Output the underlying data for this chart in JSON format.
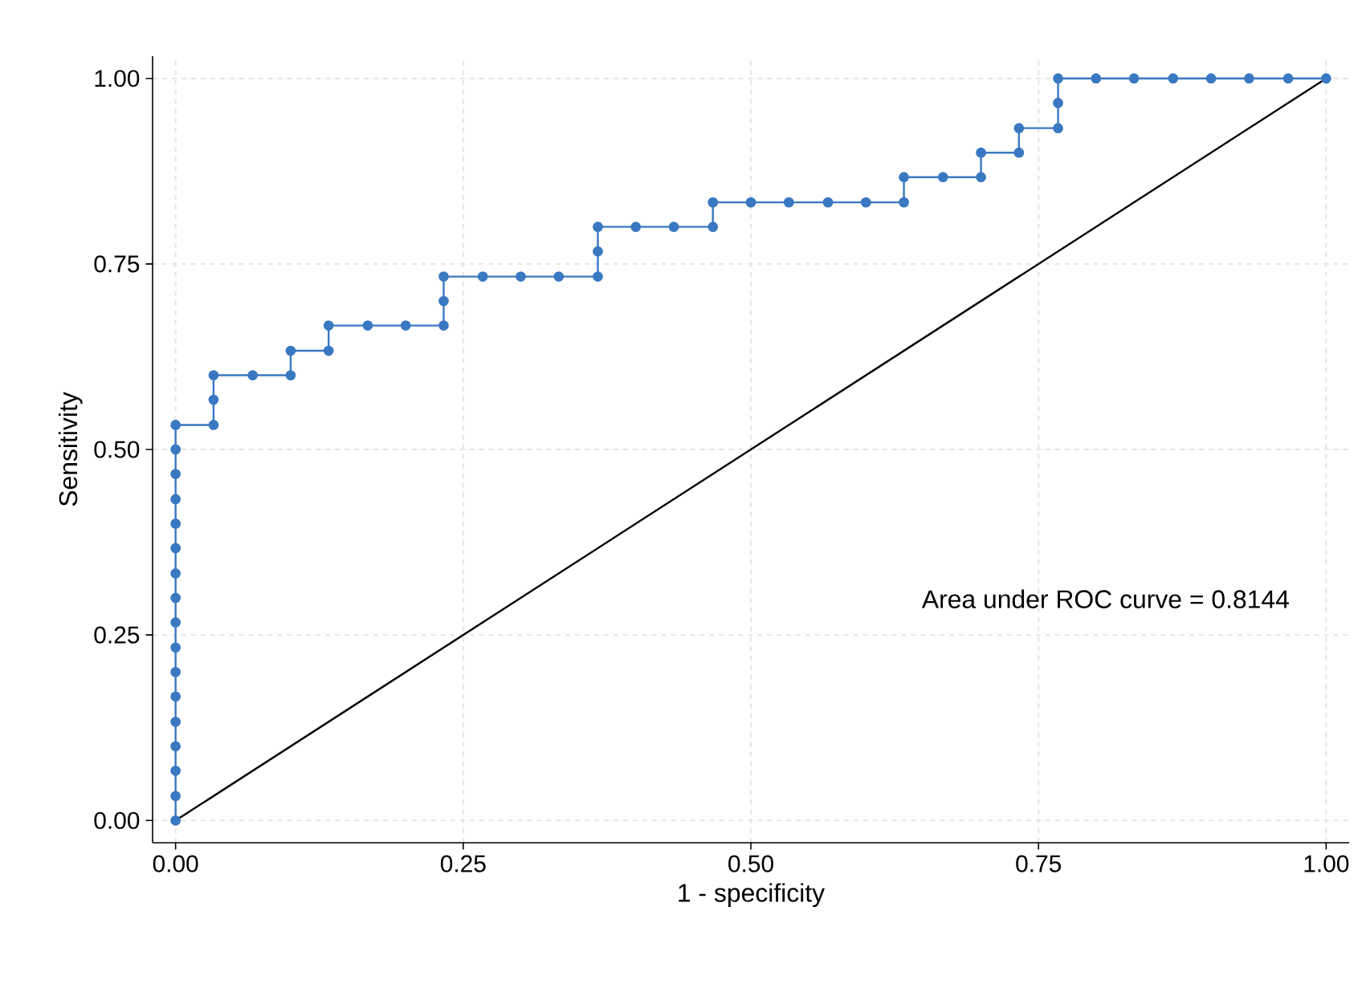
{
  "chart_data": {
    "type": "line",
    "xlabel": "1 - specificity",
    "ylabel": "Sensitivity",
    "annotations": [
      "Area under ROC curve = 0.8144"
    ],
    "series": [
      {
        "color": "#3a78c2",
        "marker": "circle",
        "x": [
          0,
          0,
          0,
          0,
          0,
          0,
          0,
          0,
          0,
          0,
          0,
          0,
          0,
          0,
          0,
          0,
          0,
          0.033,
          0.033,
          0.033,
          0.067,
          0.1,
          0.1,
          0.133,
          0.133,
          0.167,
          0.2,
          0.233,
          0.233,
          0.233,
          0.267,
          0.3,
          0.333,
          0.367,
          0.367,
          0.367,
          0.4,
          0.433,
          0.467,
          0.467,
          0.5,
          0.533,
          0.567,
          0.6,
          0.633,
          0.633,
          0.667,
          0.7,
          0.7,
          0.733,
          0.733,
          0.767,
          0.767,
          0.767,
          0.8,
          0.833,
          0.867,
          0.9,
          0.933,
          0.967,
          1
        ],
        "values": [
          0,
          0.033,
          0.067,
          0.1,
          0.133,
          0.167,
          0.2,
          0.233,
          0.267,
          0.3,
          0.333,
          0.367,
          0.4,
          0.433,
          0.467,
          0.5,
          0.533,
          0.533,
          0.567,
          0.6,
          0.6,
          0.6,
          0.633,
          0.633,
          0.667,
          0.667,
          0.667,
          0.667,
          0.7,
          0.733,
          0.733,
          0.733,
          0.733,
          0.733,
          0.767,
          0.8,
          0.8,
          0.8,
          0.8,
          0.833,
          0.833,
          0.833,
          0.833,
          0.833,
          0.833,
          0.867,
          0.867,
          0.867,
          0.9,
          0.9,
          0.933,
          0.933,
          0.967,
          1,
          1,
          1,
          1,
          1,
          1,
          1,
          1
        ]
      },
      {
        "color": "#000000",
        "marker": "none",
        "x": [
          0,
          1
        ],
        "values": [
          0,
          1
        ]
      }
    ],
    "xlim": [
      -0.02,
      1.02
    ],
    "ylim": [
      -0.03,
      1.03
    ],
    "xticks": [
      {
        "value": 0,
        "label": "0.00"
      },
      {
        "value": 0.25,
        "label": "0.25"
      },
      {
        "value": 0.5,
        "label": "0.50"
      },
      {
        "value": 0.75,
        "label": "0.75"
      },
      {
        "value": 1,
        "label": "1.00"
      }
    ],
    "yticks": [
      {
        "value": 0,
        "label": "0.00"
      },
      {
        "value": 0.25,
        "label": "0.25"
      },
      {
        "value": 0.5,
        "label": "0.50"
      },
      {
        "value": 0.75,
        "label": "0.75"
      },
      {
        "value": 1,
        "label": "1.00"
      }
    ],
    "grid": true
  }
}
